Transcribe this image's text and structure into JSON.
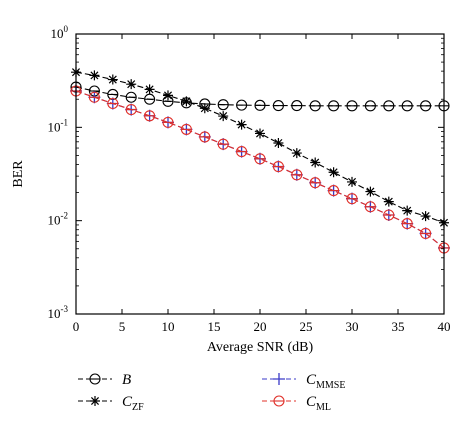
{
  "chart_data": {
    "type": "line",
    "title": "",
    "xlabel": "Average SNR (dB)",
    "ylabel": "BER",
    "xlim": [
      0,
      40
    ],
    "ylim": [
      0.001,
      1
    ],
    "yscale": "log",
    "grid": false,
    "legend_placement": "bottom",
    "x_ticks": [
      "0",
      "5",
      "10",
      "15",
      "20",
      "25",
      "30",
      "35",
      "40"
    ],
    "y_ticks": [
      {
        "base": "10",
        "exp": "0"
      },
      {
        "base": "10",
        "exp": "-1"
      },
      {
        "base": "10",
        "exp": "-2"
      },
      {
        "base": "10",
        "exp": "-3"
      }
    ],
    "x": [
      0,
      2,
      4,
      6,
      8,
      10,
      12,
      14,
      16,
      18,
      20,
      22,
      24,
      26,
      28,
      30,
      32,
      34,
      36,
      38,
      40
    ],
    "series": [
      {
        "name": "B",
        "name_main": "B",
        "name_sub": "",
        "marker": "circle",
        "line": "dashed",
        "color": "#000000",
        "values": [
          0.27,
          0.245,
          0.225,
          0.21,
          0.2,
          0.19,
          0.183,
          0.178,
          0.175,
          0.173,
          0.172,
          0.171,
          0.171,
          0.17,
          0.17,
          0.17,
          0.17,
          0.17,
          0.17,
          0.17,
          0.17
        ]
      },
      {
        "name": "CZF",
        "name_main": "C",
        "name_sub": "ZF",
        "marker": "asterisk",
        "line": "dashed",
        "color": "#000000",
        "values": [
          0.39,
          0.36,
          0.325,
          0.29,
          0.255,
          0.22,
          0.19,
          0.16,
          0.132,
          0.107,
          0.086,
          0.068,
          0.053,
          0.042,
          0.033,
          0.026,
          0.0205,
          0.016,
          0.0128,
          0.0112,
          0.0095
        ]
      },
      {
        "name": "CMMSE",
        "name_main": "C",
        "name_sub": "MMSE",
        "marker": "plus",
        "line": "dashed",
        "color": "#3a3ac8",
        "values": [
          0.245,
          0.21,
          0.18,
          0.155,
          0.133,
          0.113,
          0.095,
          0.079,
          0.066,
          0.055,
          0.046,
          0.038,
          0.031,
          0.0255,
          0.021,
          0.0172,
          0.0141,
          0.0115,
          0.0093,
          0.0073,
          0.0051
        ]
      },
      {
        "name": "CML",
        "name_main": "C",
        "name_sub": "ML",
        "marker": "circle",
        "line": "dashed",
        "color": "#e0302a",
        "values": [
          0.245,
          0.21,
          0.18,
          0.155,
          0.133,
          0.113,
          0.095,
          0.079,
          0.066,
          0.055,
          0.046,
          0.038,
          0.031,
          0.0255,
          0.021,
          0.0172,
          0.0141,
          0.0115,
          0.0093,
          0.0073,
          0.0051
        ]
      }
    ]
  }
}
